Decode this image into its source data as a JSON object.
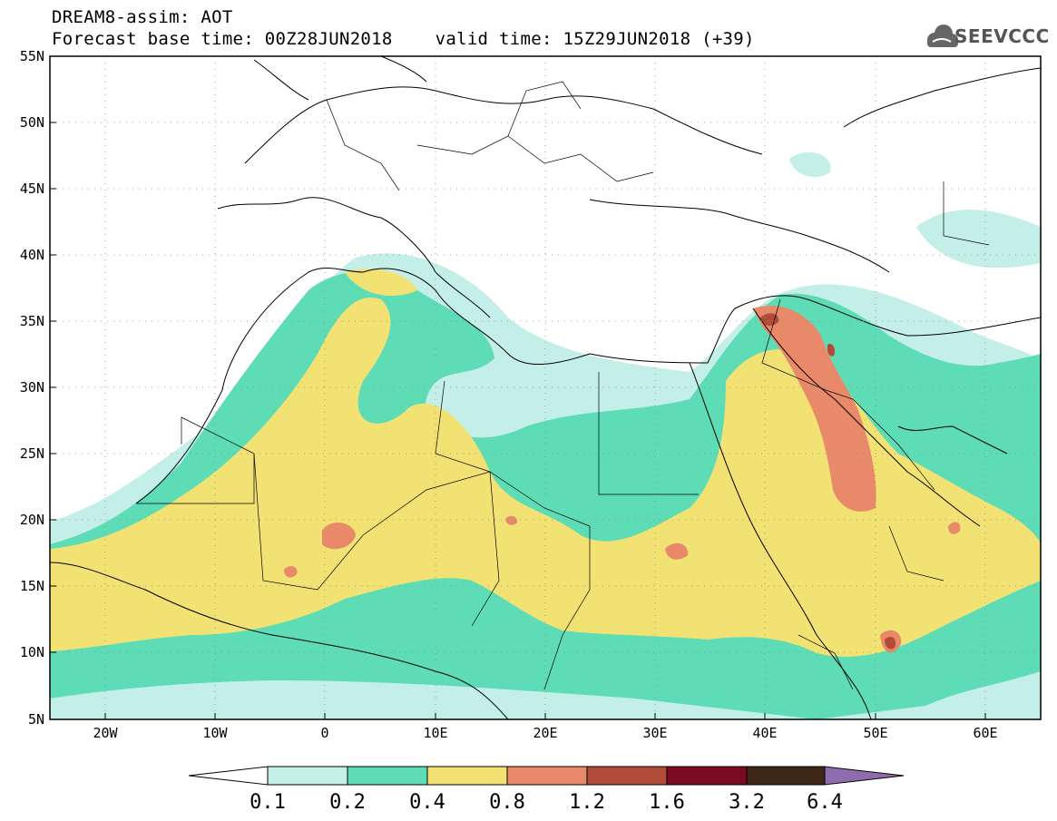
{
  "title": {
    "line1": "DREAM8-assim: AOT",
    "line2": "Forecast base time: 00Z28JUN2018    valid time: 15Z29JUN2018 (+39)"
  },
  "logo": {
    "text": "SEEVCCC",
    "icon": "cloud-icon"
  },
  "axes": {
    "lat_labels": [
      "55N",
      "50N",
      "45N",
      "40N",
      "35N",
      "30N",
      "25N",
      "20N",
      "15N",
      "10N",
      "5N"
    ],
    "lon_labels": [
      "20W",
      "10W",
      "0",
      "10E",
      "20E",
      "30E",
      "40E",
      "50E",
      "60E"
    ],
    "lat_range": [
      5,
      55
    ],
    "lon_range": [
      -25,
      65
    ]
  },
  "colorbar": {
    "thresholds": [
      "0.1",
      "0.2",
      "0.4",
      "0.8",
      "1.2",
      "1.6",
      "3.2",
      "6.4"
    ],
    "colors": [
      "#ffffff",
      "#c4efe8",
      "#5ddcb6",
      "#f2e274",
      "#e8896a",
      "#b04b3a",
      "#7c0a22",
      "#3e2716",
      "#8f6cae"
    ]
  },
  "field_colors": {
    "c1": "#c4efe8",
    "c2": "#5ddcb6",
    "c3": "#f2e274",
    "c4": "#e8896a",
    "c5": "#b04b3a"
  }
}
